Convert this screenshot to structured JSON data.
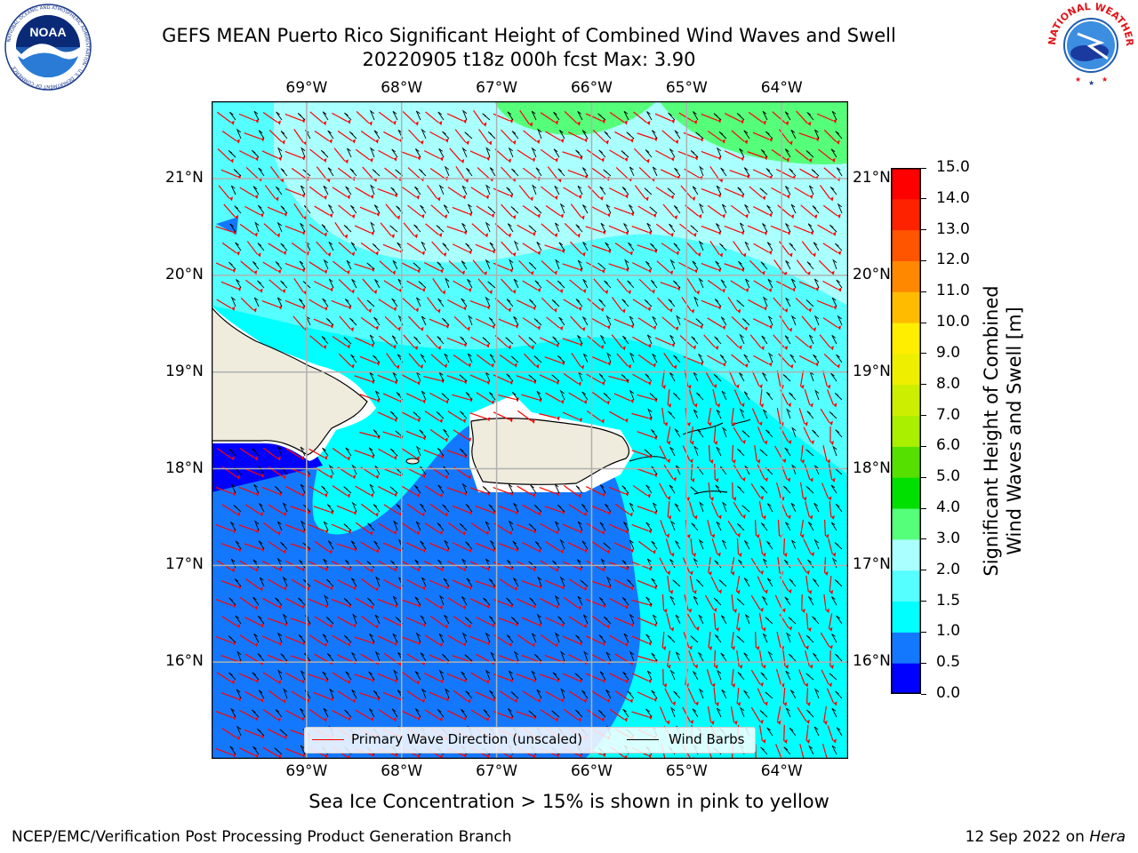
{
  "header": {
    "title_line1": "GEFS MEAN Puerto Rico Significant Height of Combined Wind Waves and Swell",
    "title_line2": "20220905 t18z 000h fcst   Max: 3.90"
  },
  "logos": {
    "left": {
      "name": "noaa-logo",
      "text": "NOAA",
      "ring_text": "NATIONAL OCEANIC AND ATMOSPHERIC ADMINISTRATION · U.S. DEPARTMENT OF COMMERCE"
    },
    "right": {
      "name": "nws-logo",
      "ring_text": "NATIONAL WEATHER SERVICE"
    }
  },
  "map": {
    "lon_range": [
      -70.0,
      -63.3
    ],
    "lat_range": [
      15.0,
      21.8
    ],
    "lon_ticks": [
      {
        "value": -69,
        "label": "69°W"
      },
      {
        "value": -68,
        "label": "68°W"
      },
      {
        "value": -67,
        "label": "67°W"
      },
      {
        "value": -66,
        "label": "66°W"
      },
      {
        "value": -65,
        "label": "65°W"
      },
      {
        "value": -64,
        "label": "64°W"
      }
    ],
    "lat_ticks": [
      {
        "value": 21,
        "label": "21°N"
      },
      {
        "value": 20,
        "label": "20°N"
      },
      {
        "value": 19,
        "label": "19°N"
      },
      {
        "value": 18,
        "label": "18°N"
      },
      {
        "value": 17,
        "label": "17°N"
      },
      {
        "value": 16,
        "label": "16°N"
      }
    ],
    "grid": true,
    "land_color": "#efebdd"
  },
  "legend": {
    "placement": "lower-center",
    "items": [
      {
        "label": "Primary Wave Direction (unscaled)",
        "color": "#ff0000"
      },
      {
        "label": "Wind Barbs",
        "color": "#000000"
      }
    ]
  },
  "colorbar": {
    "title_line1": "Significant Height of Combined",
    "title_line2": "Wind Waves and Swell [m]",
    "bounds": [
      "0.0",
      "0.5",
      "1.0",
      "1.5",
      "2.0",
      "3.0",
      "4.0",
      "5.0",
      "6.0",
      "7.0",
      "8.0",
      "9.0",
      "10.0",
      "11.0",
      "12.0",
      "13.0",
      "14.0",
      "15.0"
    ],
    "colors": [
      "#0000ff",
      "#1478ff",
      "#00ffff",
      "#55ffff",
      "#aaffff",
      "#55ff7a",
      "#00e000",
      "#55e000",
      "#aaee00",
      "#ccee00",
      "#eeee00",
      "#ffee00",
      "#ffbb00",
      "#ff8800",
      "#ff5500",
      "#ff2200",
      "#ff0000"
    ]
  },
  "footer": {
    "sea_ice_note": "Sea Ice Concentration > 15% is shown in pink to yellow",
    "left": "NCEP/EMC/Verification Post Processing Product Generation Branch",
    "right_prefix": "12 Sep 2022 on ",
    "right_host": "Hera"
  }
}
